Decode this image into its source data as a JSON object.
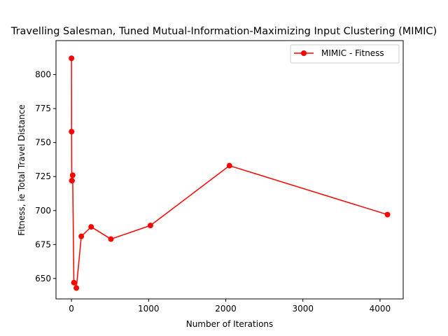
{
  "chart_data": {
    "type": "line",
    "title": "Travelling Salesman, Tuned Mutual-Information-Maximizing Input Clustering (MIMIC)",
    "xlabel": "Number of Iterations",
    "ylabel": "Fitness, ie Total Travel Distance",
    "xlim": [
      -200,
      4300
    ],
    "ylim": [
      635,
      825
    ],
    "xticks": [
      0,
      1000,
      2000,
      3000,
      4000
    ],
    "yticks": [
      650,
      675,
      700,
      725,
      750,
      775,
      800
    ],
    "grid": false,
    "legend_position": "top-right",
    "series": [
      {
        "name": "MIMIC - Fitness",
        "color": "#ff0000",
        "marker": "circle",
        "x": [
          1,
          2,
          4,
          8,
          16,
          32,
          64,
          128,
          256,
          512,
          1024,
          2048,
          4096
        ],
        "y": [
          812,
          758,
          722,
          722,
          726,
          647,
          643,
          681,
          688,
          679,
          689,
          733,
          697
        ]
      }
    ]
  }
}
